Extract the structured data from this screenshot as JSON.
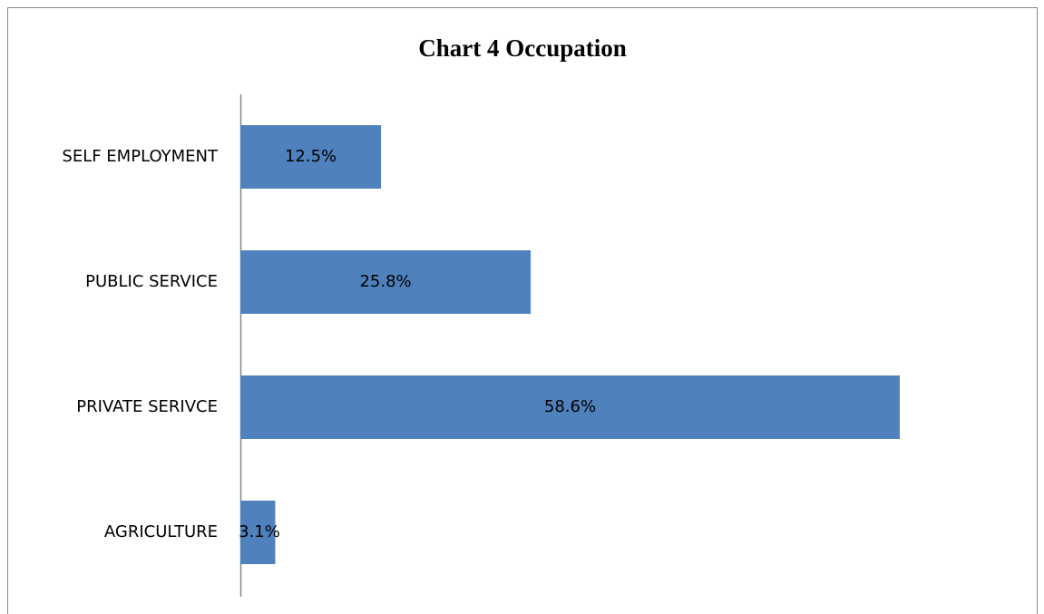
{
  "chart_data": {
    "type": "barh",
    "title": "Chart 4 Occupation",
    "categories": [
      "SELF EMPLOYMENT",
      "PUBLIC SERVICE",
      "PRIVATE SERIVCE",
      "AGRICULTURE"
    ],
    "values": [
      12.5,
      25.8,
      58.6,
      3.1
    ],
    "value_labels": [
      "12.5%",
      "25.8%",
      "58.6%",
      "3.1%"
    ],
    "color": "#4f81bd"
  }
}
